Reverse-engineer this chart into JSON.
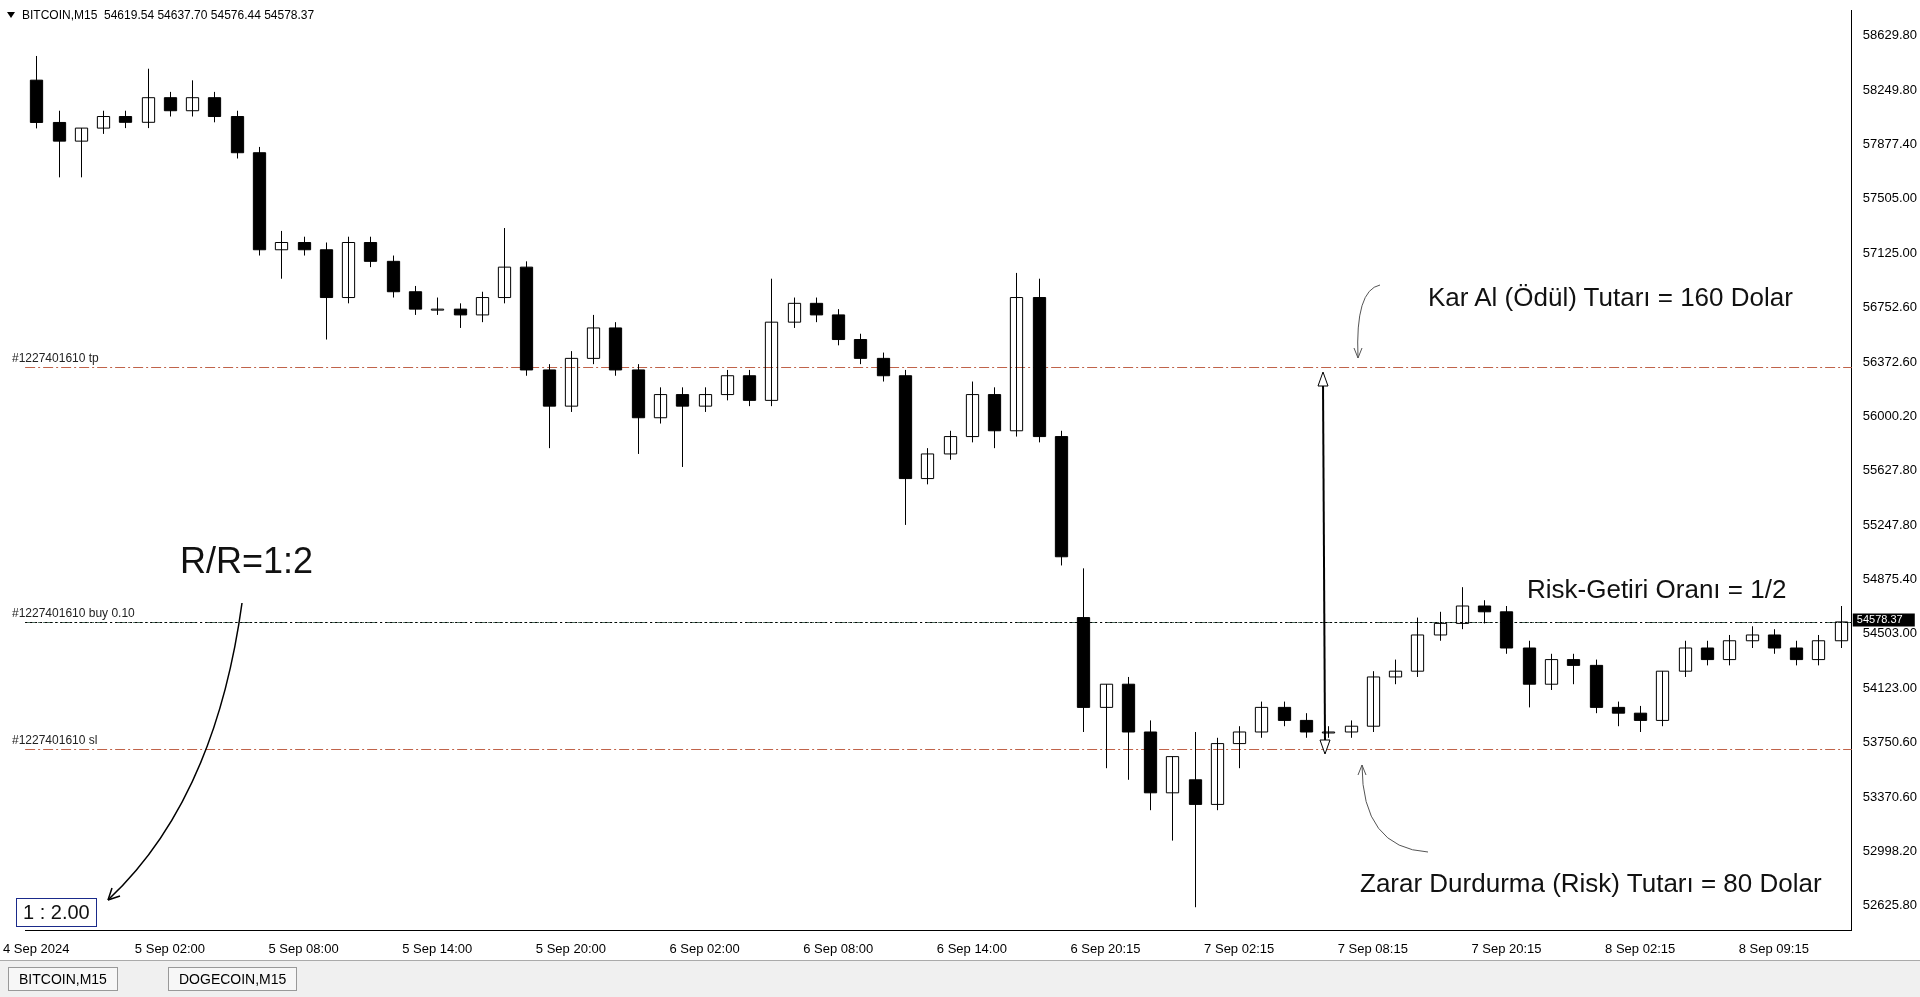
{
  "chart_data": {
    "type": "candlestick",
    "title": "BITCOIN,M15  54619.54 54637.70 54576.44 54578.37",
    "color": "#000000",
    "categories": [
      "4 Sep 2024",
      null,
      null,
      null,
      null,
      null,
      "5 Sep 02:00",
      null,
      null,
      null,
      null,
      null,
      "5 Sep 08:00",
      null,
      null,
      null,
      null,
      null,
      "5 Sep 14:00",
      null,
      null,
      null,
      null,
      null,
      "5 Sep 20:00",
      null,
      null,
      null,
      null,
      null,
      "6 Sep 02:00",
      null,
      null,
      null,
      null,
      null,
      "6 Sep 08:00",
      null,
      null,
      null,
      null,
      null,
      "6 Sep 14:00",
      null,
      null,
      null,
      null,
      null,
      "6 Sep 20:15",
      null,
      null,
      null,
      null,
      null,
      "7 Sep 02:15",
      null,
      null,
      null,
      null,
      null,
      "7 Sep 08:15",
      null,
      null,
      null,
      null,
      null,
      "7 Sep 20:15",
      null,
      null,
      null,
      null,
      null,
      "8 Sep 02:15",
      null,
      null,
      null,
      null,
      null,
      "8 Sep 09:15",
      null,
      null,
      null
    ],
    "ohlc": [
      [
        58321,
        58488,
        57988,
        58029
      ],
      [
        58029,
        58110,
        57650,
        57900
      ],
      [
        57900,
        57990,
        57650,
        57990
      ],
      [
        57990,
        58110,
        57950,
        58070
      ],
      [
        58070,
        58110,
        57990,
        58030
      ],
      [
        58030,
        58400,
        57990,
        58200
      ],
      [
        58200,
        58240,
        58070,
        58110
      ],
      [
        58110,
        58320,
        58070,
        58200
      ],
      [
        58200,
        58240,
        58030,
        58070
      ],
      [
        58070,
        58110,
        57780,
        57820
      ],
      [
        57820,
        57860,
        57110,
        57150
      ],
      [
        57150,
        57280,
        56950,
        57200
      ],
      [
        57200,
        57240,
        57110,
        57150
      ],
      [
        57150,
        57200,
        56530,
        56820
      ],
      [
        56820,
        57240,
        56780,
        57200
      ],
      [
        57200,
        57240,
        57030,
        57070
      ],
      [
        57070,
        57110,
        56820,
        56860
      ],
      [
        56860,
        56900,
        56700,
        56740
      ],
      [
        56740,
        56820,
        56700,
        56740
      ],
      [
        56740,
        56780,
        56610,
        56700
      ],
      [
        56700,
        56860,
        56650,
        56820
      ],
      [
        56820,
        57300,
        56780,
        57030
      ],
      [
        57030,
        57070,
        56280,
        56320
      ],
      [
        56320,
        56360,
        55780,
        56070
      ],
      [
        56070,
        56450,
        56030,
        56400
      ],
      [
        56400,
        56700,
        56360,
        56610
      ],
      [
        56610,
        56650,
        56280,
        56320
      ],
      [
        56320,
        56360,
        55740,
        55990
      ],
      [
        55990,
        56200,
        55950,
        56150
      ],
      [
        56150,
        56200,
        55650,
        56070
      ],
      [
        56070,
        56200,
        56030,
        56150
      ],
      [
        56150,
        56320,
        56110,
        56280
      ],
      [
        56280,
        56320,
        56070,
        56110
      ],
      [
        56110,
        56950,
        56070,
        56650
      ],
      [
        56650,
        56820,
        56610,
        56780
      ],
      [
        56780,
        56820,
        56650,
        56700
      ],
      [
        56700,
        56740,
        56490,
        56530
      ],
      [
        56530,
        56570,
        56360,
        56400
      ],
      [
        56400,
        56440,
        56240,
        56280
      ],
      [
        56280,
        56320,
        55250,
        55570
      ],
      [
        55570,
        55780,
        55530,
        55740
      ],
      [
        55740,
        55900,
        55700,
        55860
      ],
      [
        55860,
        56240,
        55820,
        56150
      ],
      [
        56150,
        56200,
        55780,
        55900
      ],
      [
        55900,
        56990,
        55860,
        56820
      ],
      [
        56820,
        56950,
        55820,
        55860
      ],
      [
        55860,
        55900,
        54970,
        55030
      ],
      [
        54610,
        54950,
        53820,
        53990
      ],
      [
        53990,
        54150,
        53570,
        54150
      ],
      [
        54150,
        54200,
        53490,
        53820
      ],
      [
        53820,
        53900,
        53280,
        53400
      ],
      [
        53400,
        53650,
        53070,
        53650
      ],
      [
        53490,
        53820,
        52610,
        53320
      ],
      [
        53320,
        53780,
        53280,
        53740
      ],
      [
        53740,
        53860,
        53570,
        53820
      ],
      [
        53820,
        54030,
        53780,
        53990
      ],
      [
        53990,
        54030,
        53860,
        53900
      ],
      [
        53900,
        53950,
        53780,
        53820
      ],
      [
        53820,
        53860,
        53780,
        53820
      ],
      [
        53820,
        53900,
        53780,
        53860
      ],
      [
        53860,
        54240,
        53820,
        54200
      ],
      [
        54200,
        54320,
        54150,
        54240
      ],
      [
        54240,
        54610,
        54200,
        54490
      ],
      [
        54490,
        54650,
        54450,
        54570
      ],
      [
        54570,
        54820,
        54530,
        54690
      ],
      [
        54690,
        54730,
        54570,
        54650
      ],
      [
        54650,
        54690,
        54360,
        54400
      ],
      [
        54400,
        54450,
        53990,
        54150
      ],
      [
        54150,
        54360,
        54110,
        54320
      ],
      [
        54320,
        54360,
        54150,
        54280
      ],
      [
        54280,
        54320,
        53950,
        53990
      ],
      [
        53990,
        54030,
        53860,
        53950
      ],
      [
        53950,
        54000,
        53820,
        53900
      ],
      [
        53900,
        54240,
        53860,
        54240
      ],
      [
        54240,
        54450,
        54200,
        54400
      ],
      [
        54400,
        54450,
        54280,
        54320
      ],
      [
        54320,
        54490,
        54280,
        54450
      ],
      [
        54450,
        54550,
        54400,
        54490
      ],
      [
        54490,
        54530,
        54360,
        54400
      ],
      [
        54400,
        54450,
        54280,
        54320
      ],
      [
        54320,
        54490,
        54280,
        54450
      ],
      [
        54450,
        54690,
        54400,
        54580
      ]
    ],
    "ylim": [
      52450,
      58800
    ],
    "yticks": [
      {
        "value": 52625.8,
        "label": "52625.80"
      },
      {
        "value": 52998.2,
        "label": "52998.20"
      },
      {
        "value": 53370.6,
        "label": "53370.60"
      },
      {
        "value": 53750.6,
        "label": "53750.60"
      },
      {
        "value": 54123,
        "label": "54123.00"
      },
      {
        "value": 54503,
        "label": "54503.00"
      },
      {
        "value": 54875.4,
        "label": "54875.40"
      },
      {
        "value": 55247.8,
        "label": "55247.80"
      },
      {
        "value": 55627.8,
        "label": "55627.80"
      },
      {
        "value": 56000.2,
        "label": "56000.20"
      },
      {
        "value": 56372.6,
        "label": "56372.60"
      },
      {
        "value": 56752.6,
        "label": "56752.60"
      },
      {
        "value": 57125,
        "label": "57125.00"
      },
      {
        "value": 57505,
        "label": "57505.00"
      },
      {
        "value": 57877.4,
        "label": "57877.40"
      },
      {
        "value": 58249.8,
        "label": "58249.80"
      },
      {
        "value": 58629.8,
        "label": "58629.80"
      }
    ],
    "ref_lines": [
      {
        "axis": "y",
        "value": 56340,
        "label": "#1227401610 tp",
        "color": "#c0634a",
        "line_style": "dashed"
      },
      {
        "axis": "y",
        "value": 54580,
        "label": "#1227401610 buy 0.10",
        "color": "#4f6f5f",
        "line_style": "dashed"
      },
      {
        "axis": "y",
        "value": 53700,
        "label": "#1227401610 sl",
        "color": "#c0634a",
        "line_style": "dashed"
      },
      {
        "axis": "y",
        "value": 54578.37,
        "label": "54578.37",
        "color": "#000000",
        "line_style": "dotted"
      }
    ],
    "annotations": [
      "R/R=1:2",
      "1 : 2.00",
      "Kar Al (Ödül) Tutarı = 160 Dolar",
      "Risk-Getiri Oranı = 1/2",
      "Zarar Durdurma (Risk) Tutarı = 80 Dolar",
      "BITCOIN,M15",
      "DOGECOIN,M15"
    ]
  }
}
